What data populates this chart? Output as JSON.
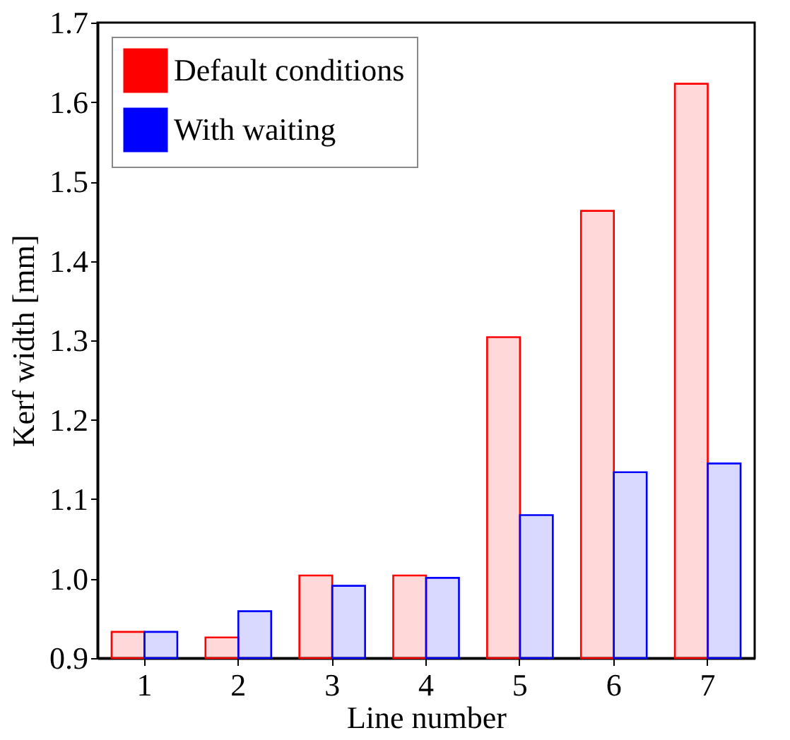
{
  "chart_data": {
    "type": "bar",
    "xlabel": "Line number",
    "ylabel": "Kerf width [mm]",
    "categories": [
      "1",
      "2",
      "3",
      "4",
      "5",
      "6",
      "7"
    ],
    "series": [
      {
        "name": "Default conditions",
        "color": "#ff0000",
        "values": [
          0.933,
          0.926,
          1.004,
          1.004,
          1.304,
          1.463,
          1.623
        ]
      },
      {
        "name": "With waiting",
        "color": "#0000ff",
        "values": [
          0.933,
          0.959,
          0.991,
          1.001,
          1.08,
          1.134,
          1.145
        ]
      }
    ],
    "ylim": [
      0.9,
      1.7
    ],
    "yticks": [
      0.9,
      {
        "value": 1.0,
        "label": "1.0"
      },
      1.1,
      1.2,
      1.3,
      1.4,
      1.5,
      1.6,
      1.7
    ],
    "grid": false,
    "legend": "top left"
  }
}
